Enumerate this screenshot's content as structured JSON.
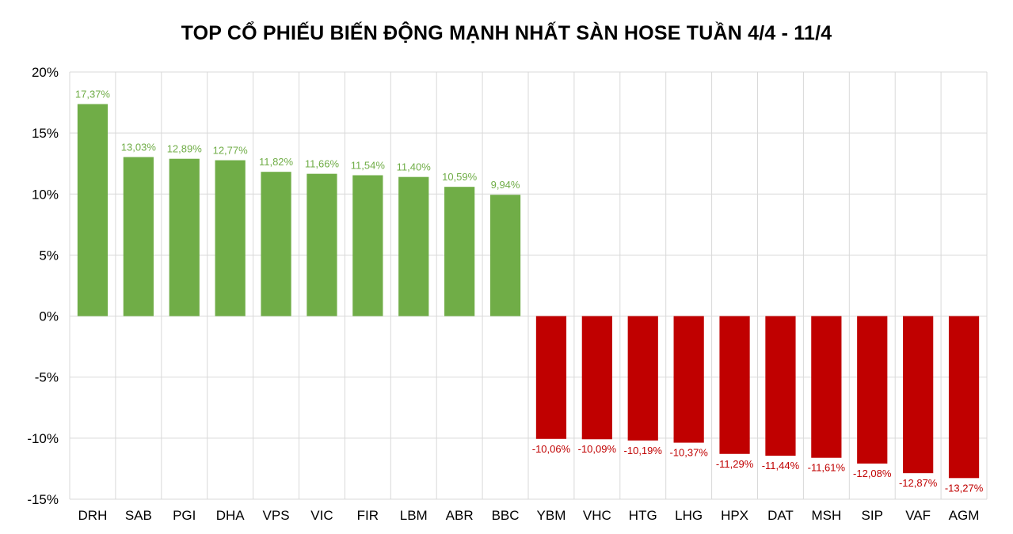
{
  "chart_data": {
    "type": "bar",
    "title": "TOP CỔ PHIẾU BIẾN ĐỘNG MẠNH NHẤT SÀN HOSE TUẦN 4/4 - 11/4",
    "xlabel": "",
    "ylabel": "",
    "ylim": [
      -15,
      20
    ],
    "yticks": [
      20,
      15,
      10,
      5,
      0,
      -5,
      -10,
      -15
    ],
    "ytick_labels": [
      "20%",
      "15%",
      "10%",
      "5%",
      "0%",
      "-5%",
      "-10%",
      "-15%"
    ],
    "grid": true,
    "legend": "none",
    "categories": [
      "DRH",
      "SAB",
      "PGI",
      "DHA",
      "VPS",
      "VIC",
      "FIR",
      "LBM",
      "ABR",
      "BBC",
      "YBM",
      "VHC",
      "HTG",
      "LHG",
      "HPX",
      "DAT",
      "MSH",
      "SIP",
      "VAF",
      "AGM"
    ],
    "values": [
      17.37,
      13.03,
      12.89,
      12.77,
      11.82,
      11.66,
      11.54,
      11.4,
      10.59,
      9.94,
      -10.06,
      -10.09,
      -10.19,
      -10.37,
      -11.29,
      -11.44,
      -11.61,
      -12.08,
      -12.87,
      -13.27
    ],
    "data_labels": [
      "17,37%",
      "13,03%",
      "12,89%",
      "12,77%",
      "11,82%",
      "11,66%",
      "11,54%",
      "11,40%",
      "10,59%",
      "9,94%",
      "-10,06%",
      "-10,09%",
      "-10,19%",
      "-10,37%",
      "-11,29%",
      "-11,44%",
      "-11,61%",
      "-12,08%",
      "-12,87%",
      "-13,27%"
    ],
    "colors": {
      "positive": "#70ad47",
      "negative": "#c00000",
      "positive_label": "#70ad47",
      "negative_label": "#c00000",
      "grid": "#d9d9d9"
    }
  }
}
